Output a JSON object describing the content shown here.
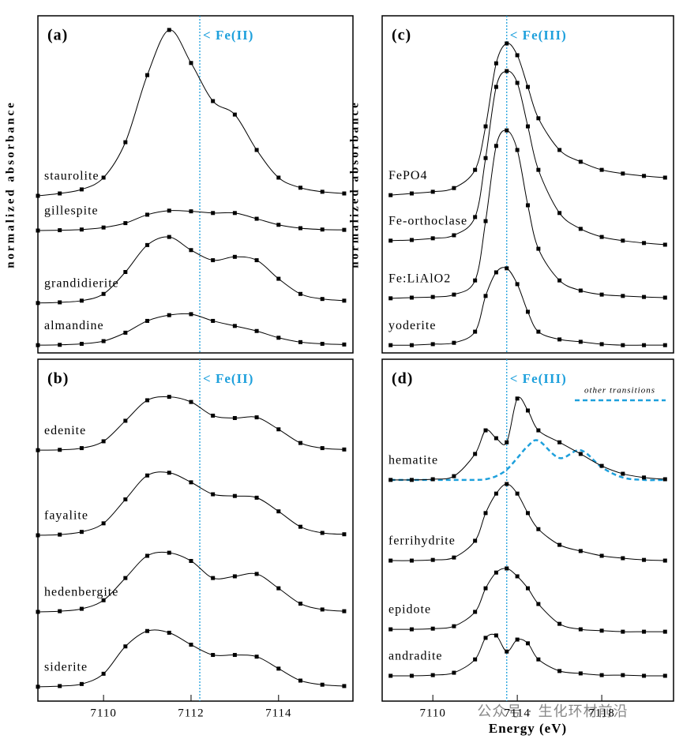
{
  "chart_data": [
    {
      "type": "line",
      "title": "(a)",
      "ylabel": "normalized absorbance",
      "marker": {
        "x": 7112.2,
        "label": "< Fe(II)",
        "color": "#1ea0dc"
      },
      "xlim": [
        7108.5,
        7115.7
      ],
      "ylim": [
        0,
        10
      ],
      "x": [
        7108.5,
        7109,
        7109.5,
        7110,
        7110.5,
        7111,
        7111.5,
        7112,
        7112.5,
        7113,
        7113.5,
        7114,
        7114.5,
        7115,
        7115.5
      ],
      "series": [
        {
          "name": "staurolite",
          "color": "#000000",
          "values": [
            4.66,
            4.73,
            4.85,
            5.2,
            6.25,
            8.24,
            9.58,
            8.6,
            7.47,
            7.07,
            6.02,
            5.2,
            4.9,
            4.78,
            4.73
          ]
        },
        {
          "name": "gillespite",
          "color": "#000000",
          "values": [
            3.63,
            3.64,
            3.66,
            3.72,
            3.85,
            4.1,
            4.22,
            4.2,
            4.15,
            4.15,
            3.98,
            3.8,
            3.7,
            3.66,
            3.65
          ]
        },
        {
          "name": "grandidierite",
          "color": "#000000",
          "values": [
            1.48,
            1.5,
            1.55,
            1.75,
            2.4,
            3.2,
            3.44,
            3.05,
            2.75,
            2.85,
            2.75,
            2.2,
            1.75,
            1.6,
            1.55
          ]
        },
        {
          "name": "almandine",
          "color": "#000000",
          "values": [
            0.23,
            0.24,
            0.27,
            0.35,
            0.6,
            0.95,
            1.12,
            1.15,
            0.95,
            0.8,
            0.65,
            0.45,
            0.32,
            0.27,
            0.25
          ]
        }
      ]
    },
    {
      "type": "line",
      "title": "(b)",
      "marker": {
        "x": 7112.2,
        "label": "< Fe(II)",
        "color": "#1ea0dc"
      },
      "xlim": [
        7108.5,
        7115.7
      ],
      "ylim": [
        0,
        10
      ],
      "xticks": [
        7110,
        7112,
        7114
      ],
      "x": [
        7108.5,
        7109,
        7109.5,
        7110,
        7110.5,
        7111,
        7111.5,
        7112,
        7112.5,
        7113,
        7113.5,
        7114,
        7114.5,
        7115,
        7115.5
      ],
      "series": [
        {
          "name": "edenite",
          "color": "#000000",
          "values": [
            7.34,
            7.35,
            7.4,
            7.6,
            8.2,
            8.8,
            8.9,
            8.75,
            8.35,
            8.28,
            8.3,
            7.95,
            7.55,
            7.4,
            7.36
          ]
        },
        {
          "name": "fayalite",
          "color": "#000000",
          "values": [
            4.85,
            4.87,
            4.95,
            5.2,
            5.9,
            6.6,
            6.68,
            6.4,
            6.05,
            6.0,
            5.95,
            5.55,
            5.1,
            4.92,
            4.88
          ]
        },
        {
          "name": "hedenbergite",
          "color": "#000000",
          "values": [
            2.61,
            2.63,
            2.7,
            2.95,
            3.6,
            4.25,
            4.34,
            4.1,
            3.6,
            3.65,
            3.72,
            3.3,
            2.85,
            2.68,
            2.63
          ]
        },
        {
          "name": "siderite",
          "color": "#000000",
          "values": [
            0.42,
            0.44,
            0.5,
            0.8,
            1.6,
            2.05,
            2.0,
            1.65,
            1.35,
            1.35,
            1.3,
            0.95,
            0.6,
            0.48,
            0.44
          ]
        }
      ]
    },
    {
      "type": "line",
      "title": "(c)",
      "ylabel": "normalized absorbance",
      "marker": {
        "x": 7113.5,
        "label": "< Fe(III)",
        "color": "#1ea0dc"
      },
      "xlim": [
        7107.6,
        7121.4
      ],
      "ylim": [
        0,
        10
      ],
      "x": [
        7108,
        7109,
        7110,
        7111,
        7112,
        7112.5,
        7113,
        7113.5,
        7114,
        7114.5,
        7115,
        7116,
        7117,
        7118,
        7119,
        7120,
        7121
      ],
      "series": [
        {
          "name": "FePO4",
          "color": "#000000",
          "values": [
            4.68,
            4.73,
            4.78,
            4.89,
            5.43,
            6.72,
            8.59,
            9.18,
            8.83,
            7.89,
            6.96,
            6.02,
            5.67,
            5.43,
            5.32,
            5.25,
            5.2
          ]
        },
        {
          "name": "Fe-orthoclase",
          "color": "#000000",
          "values": [
            3.33,
            3.35,
            3.4,
            3.49,
            4.03,
            5.78,
            7.89,
            8.36,
            8.01,
            6.72,
            5.43,
            4.15,
            3.68,
            3.44,
            3.33,
            3.26,
            3.21
          ]
        },
        {
          "name": "Fe:LiAlO2",
          "color": "#000000",
          "values": [
            1.62,
            1.64,
            1.66,
            1.73,
            2.15,
            3.91,
            6.14,
            6.6,
            6.02,
            4.38,
            3.09,
            2.15,
            1.85,
            1.73,
            1.69,
            1.66,
            1.64
          ]
        },
        {
          "name": "yoderite",
          "color": "#000000",
          "values": [
            0.23,
            0.23,
            0.26,
            0.3,
            0.63,
            1.69,
            2.39,
            2.51,
            2.04,
            1.22,
            0.63,
            0.4,
            0.33,
            0.26,
            0.23,
            0.23,
            0.23
          ]
        }
      ]
    },
    {
      "type": "line",
      "title": "(d)",
      "xlabel": "Energy (eV)",
      "marker": {
        "x": 7113.5,
        "label": "< Fe(III)",
        "color": "#1ea0dc"
      },
      "xlim": [
        7107.6,
        7121.4
      ],
      "ylim": [
        0,
        10
      ],
      "xticks": [
        7110,
        7114,
        7118
      ],
      "x": [
        7108,
        7109,
        7110,
        7111,
        7112,
        7112.5,
        7113,
        7113.5,
        7114,
        7114.5,
        7115,
        7116,
        7117,
        7118,
        7119,
        7120,
        7121
      ],
      "series": [
        {
          "name": "hematite",
          "color": "#000000",
          "values": [
            6.47,
            6.47,
            6.49,
            6.58,
            7.23,
            7.92,
            7.69,
            7.57,
            8.85,
            8.5,
            7.92,
            7.57,
            7.23,
            6.88,
            6.65,
            6.54,
            6.49
          ]
        },
        {
          "name": "ferrihydrite",
          "color": "#000000",
          "values": [
            4.11,
            4.11,
            4.13,
            4.2,
            4.69,
            5.5,
            6.07,
            6.35,
            6.07,
            5.5,
            5.03,
            4.57,
            4.39,
            4.25,
            4.18,
            4.13,
            4.11
          ]
        },
        {
          "name": "epidote",
          "color": "#000000",
          "values": [
            2.1,
            2.1,
            2.12,
            2.19,
            2.61,
            3.3,
            3.76,
            3.88,
            3.65,
            3.3,
            2.84,
            2.26,
            2.1,
            2.06,
            2.03,
            2.03,
            2.03
          ]
        },
        {
          "name": "andradite",
          "color": "#000000",
          "values": [
            0.74,
            0.74,
            0.76,
            0.83,
            1.22,
            1.85,
            1.92,
            1.45,
            1.8,
            1.69,
            1.22,
            0.88,
            0.81,
            0.76,
            0.76,
            0.74,
            0.74
          ]
        }
      ],
      "components": [
        {
          "name": "other transitions",
          "color": "#1ea0dc",
          "values": [
            6.47,
            6.47,
            6.47,
            6.47,
            6.47,
            6.49,
            6.58,
            6.77,
            7.11,
            7.46,
            7.62,
            7.11,
            7.34,
            6.84,
            6.54,
            6.47,
            6.47
          ]
        }
      ]
    }
  ],
  "watermark": "公众号 · 生化环材前沿"
}
